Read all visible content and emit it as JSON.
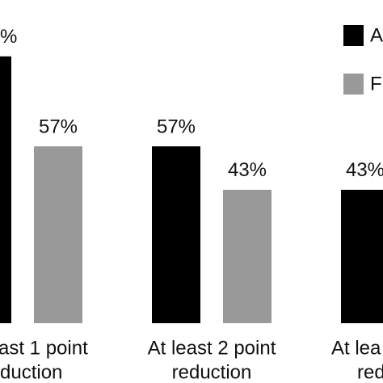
{
  "chart_data": {
    "type": "bar",
    "categories": [
      [
        "ast 1 point",
        "duction"
      ],
      [
        "At least 2 point",
        "reduction"
      ],
      [
        "At lea",
        "red"
      ]
    ],
    "series": [
      {
        "name": "A",
        "color": "#000000",
        "values": [
          86,
          57,
          43
        ],
        "value_labels": [
          "%",
          "57%",
          "43%"
        ]
      },
      {
        "name": "F",
        "color": "#999999",
        "values": [
          57,
          43,
          null
        ],
        "value_labels": [
          "57%",
          "43%",
          null
        ]
      }
    ]
  }
}
